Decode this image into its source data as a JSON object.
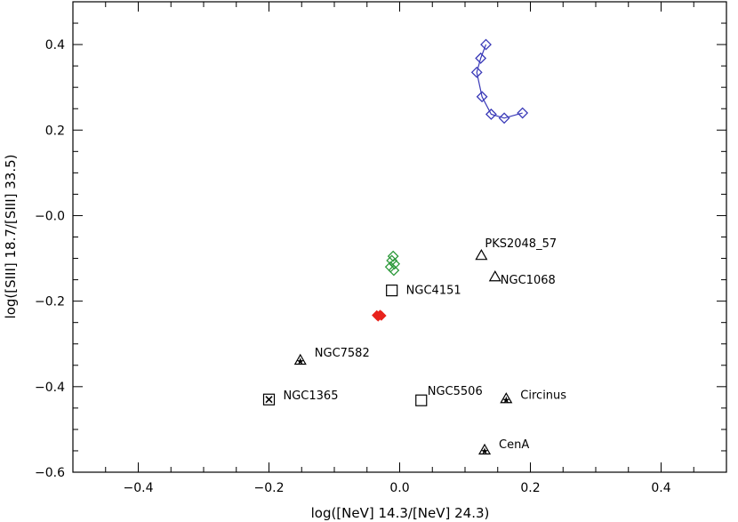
{
  "chart_data": {
    "type": "scatter",
    "title": "",
    "xlabel": "log([NeV] 14.3/[NeV] 24.3)",
    "ylabel": "log([SIII] 18.7/[SIII] 33.5)",
    "xlim": [
      -0.5,
      0.5
    ],
    "ylim": [
      -0.6,
      0.5
    ],
    "xticks": [
      -0.4,
      -0.2,
      0.0,
      0.2,
      0.4
    ],
    "xtick_labels": [
      "−0.4",
      "−0.2",
      "0.0",
      "0.2",
      "0.4"
    ],
    "yticks": [
      -0.6,
      -0.4,
      -0.2,
      0.0,
      0.2,
      0.4
    ],
    "ytick_labels": [
      "−0.6",
      "−0.4",
      "−0.2",
      "−0.0",
      "0.2",
      "0.4"
    ],
    "grid": false,
    "series": [
      {
        "marker": "diamond-line",
        "color": "#3a3ab8",
        "points": [
          {
            "x": 0.132,
            "y": 0.4
          },
          {
            "x": 0.124,
            "y": 0.368
          },
          {
            "x": 0.118,
            "y": 0.335
          },
          {
            "x": 0.126,
            "y": 0.278
          },
          {
            "x": 0.14,
            "y": 0.237
          },
          {
            "x": 0.16,
            "y": 0.228
          },
          {
            "x": 0.188,
            "y": 0.24
          }
        ]
      },
      {
        "marker": "diamond",
        "color": "#2e9a3c",
        "points": [
          {
            "x": -0.01,
            "y": -0.095
          },
          {
            "x": -0.012,
            "y": -0.105
          },
          {
            "x": -0.008,
            "y": -0.113
          },
          {
            "x": -0.014,
            "y": -0.12
          },
          {
            "x": -0.009,
            "y": -0.128
          }
        ]
      },
      {
        "marker": "diamond-filled",
        "color": "#e8231c",
        "points": [
          {
            "x": -0.035,
            "y": -0.233
          },
          {
            "x": -0.03,
            "y": -0.232
          },
          {
            "x": -0.033,
            "y": -0.236
          },
          {
            "x": -0.028,
            "y": -0.234
          }
        ]
      },
      {
        "marker": "labeled",
        "color": "#000000",
        "points": [
          {
            "x": -0.012,
            "y": -0.175,
            "marker": "square",
            "label": "NGC4151"
          },
          {
            "x": 0.125,
            "y": -0.093,
            "marker": "triangle",
            "label": "PKS2048_57"
          },
          {
            "x": 0.146,
            "y": -0.143,
            "marker": "triangle",
            "label": "NGC1068"
          },
          {
            "x": -0.152,
            "y": -0.338,
            "marker": "star-triangle",
            "label": "NGC7582"
          },
          {
            "x": -0.2,
            "y": -0.43,
            "marker": "square-x",
            "label": "NGC1365"
          },
          {
            "x": 0.033,
            "y": -0.432,
            "marker": "square",
            "label": "NGC5506"
          },
          {
            "x": 0.163,
            "y": -0.428,
            "marker": "star-triangle",
            "label": "Circinus"
          },
          {
            "x": 0.13,
            "y": -0.548,
            "marker": "star-triangle",
            "label": "CenA"
          }
        ]
      }
    ]
  }
}
